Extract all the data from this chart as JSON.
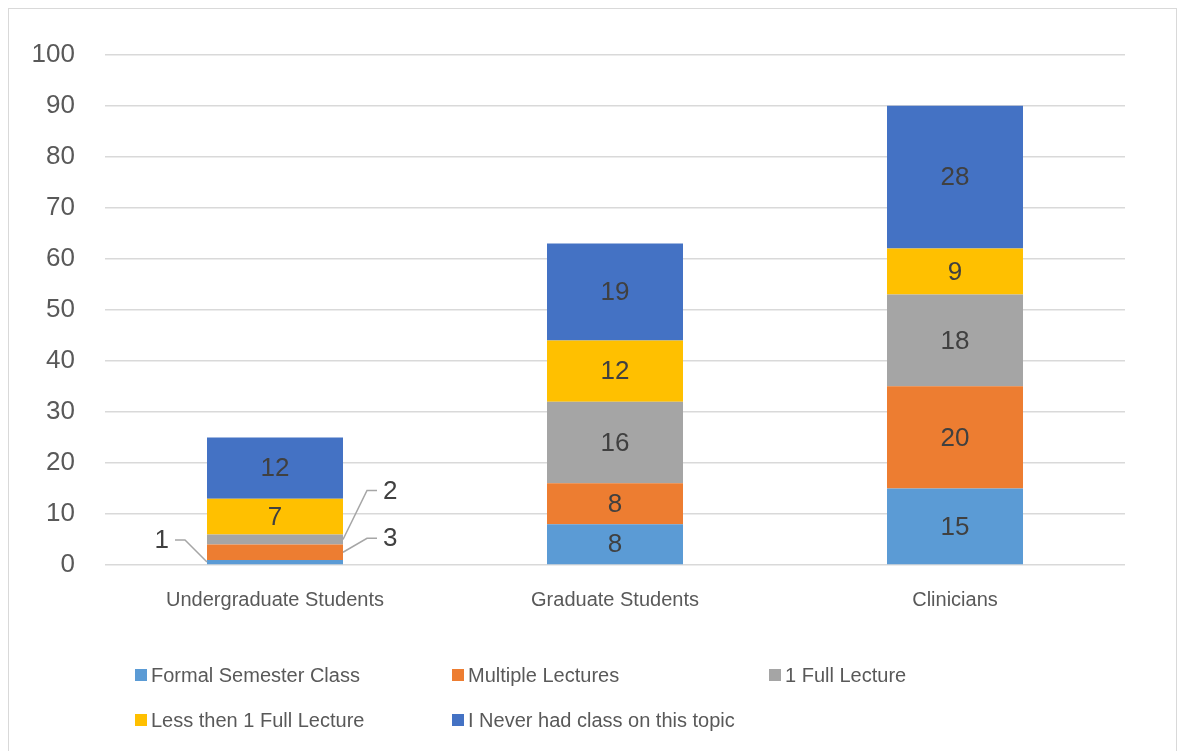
{
  "chart_data": {
    "type": "bar",
    "stacked": true,
    "categories": [
      "Undergraduate Students",
      "Graduate Students",
      "Clinicians"
    ],
    "series": [
      {
        "name": "Formal Semester Class",
        "color": "#5b9bd5",
        "values": [
          1,
          8,
          15
        ]
      },
      {
        "name": "Multiple Lectures",
        "color": "#ed7d31",
        "values": [
          3,
          8,
          20
        ]
      },
      {
        "name": "1 Full Lecture",
        "color": "#a5a5a5",
        "values": [
          2,
          16,
          18
        ]
      },
      {
        "name": "Less then 1 Full Lecture",
        "color": "#ffc000",
        "values": [
          7,
          12,
          9
        ]
      },
      {
        "name": "I Never had class on this topic",
        "color": "#4472c4",
        "values": [
          12,
          19,
          28
        ]
      }
    ],
    "ylim": [
      0,
      100
    ],
    "yticks": [
      0,
      10,
      20,
      30,
      40,
      50,
      60,
      70,
      80,
      90,
      100
    ],
    "grid": "y",
    "legend": "bottom",
    "data_labels": true
  }
}
